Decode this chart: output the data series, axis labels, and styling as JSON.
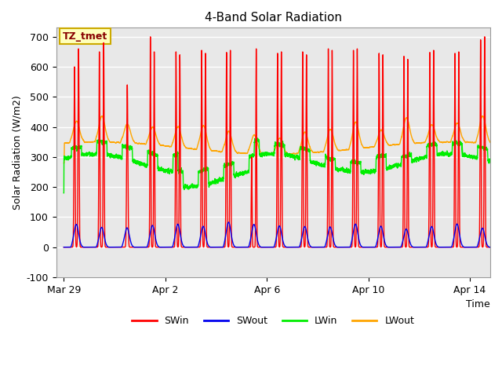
{
  "title": "4-Band Solar Radiation",
  "xlabel": "Time",
  "ylabel": "Solar Radiation (W/m2)",
  "ylim": [
    -100,
    730
  ],
  "annotation": "TZ_tmet",
  "bg_color": "#e8e8e8",
  "fig_bg": "#ffffff",
  "grid_color": "#ffffff",
  "series": {
    "SWin": {
      "color": "#ff0000",
      "lw": 1.0
    },
    "SWout": {
      "color": "#0000ee",
      "lw": 1.0
    },
    "LWin": {
      "color": "#00ee00",
      "lw": 1.0
    },
    "LWout": {
      "color": "#ffa500",
      "lw": 1.0
    }
  },
  "x_ticks_days": [
    0,
    4,
    8,
    12,
    16
  ],
  "x_tick_labels": [
    "Mar 29",
    "Apr 2",
    "Apr 6",
    "Apr 10",
    "Apr 14"
  ],
  "yticks": [
    -100,
    0,
    100,
    200,
    300,
    400,
    500,
    600,
    700
  ],
  "legend_labels": [
    "SWin",
    "SWout",
    "LWin",
    "LWout"
  ],
  "legend_colors": [
    "#ff0000",
    "#0000ee",
    "#00ee00",
    "#ffa500"
  ]
}
